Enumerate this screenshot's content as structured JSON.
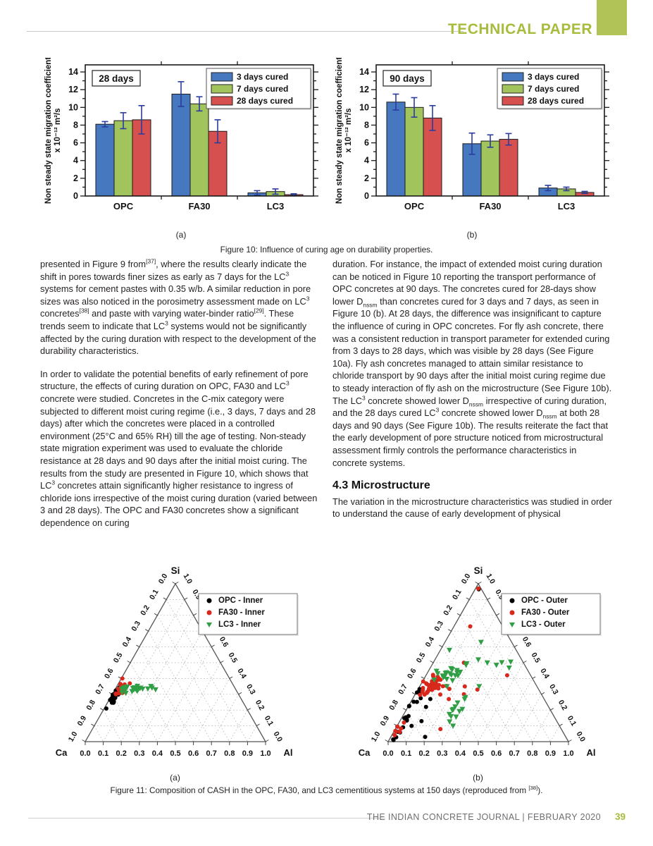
{
  "page": {
    "header": {
      "title": "TECHNICAL PAPER",
      "accent_color": "#b1c256"
    },
    "footer": {
      "journal": "THE INDIAN CONCRETE JOURNAL | FEBRUARY 2020",
      "page_number": "39"
    }
  },
  "figure10": {
    "caption": "Figure 10: Influence of curing age on durability properties.",
    "sub_labels": [
      "(a)",
      "(b)"
    ]
  },
  "figure11": {
    "caption_segments": [
      "Figure 11: Composition of CASH in the OPC, FA30, and LC3 cementitious systems at 150 days (reproduced from ",
      {
        "sup": "[38]"
      },
      ")."
    ],
    "sub_labels": [
      "(a)",
      "(b)"
    ]
  },
  "body": {
    "left": {
      "blocks": [
        {
          "type": "p",
          "segments": [
            "presented in Figure 9 from",
            {
              "sup": "[37]"
            },
            ", where the results clearly indicate the shift in pores towards finer sizes as early as 7 days for the LC",
            {
              "sup": "3"
            },
            " systems for cement pastes with 0.35 w/b. A similar reduction in pore sizes was also noticed in the porosimetry assessment made on LC",
            {
              "sup": "3"
            },
            " concretes",
            {
              "sup": "[38]"
            },
            " and paste with varying water-binder ratio",
            {
              "sup": "[29]"
            },
            ". These trends seem to indicate that LC",
            {
              "sup": "3"
            },
            " systems would not be significantly affected by the curing duration with respect to the development of the durability characteristics."
          ]
        },
        {
          "type": "p",
          "segments": [
            "In order to validate the potential benefits of early refinement of pore structure, the effects of curing duration on OPC, FA30 and LC",
            {
              "sup": "3"
            },
            " concrete were studied. Concretes in the C-mix category were subjected to different moist curing regime (i.e., 3 days, 7 days and 28 days) after which the concretes were placed in a controlled environment (25°C and 65% RH) till the age of testing. Non-steady state migration experiment was used to evaluate the chloride resistance at 28 days and 90 days after the initial moist curing. The results from the study are presented in Figure 10, which shows that LC",
            {
              "sup": "3"
            },
            " concretes attain significantly higher resistance to ingress of chloride ions irrespective of the moist curing duration (varied between 3 and 28 days). The OPC and FA30 concretes show a significant dependence on curing"
          ]
        }
      ]
    },
    "right": {
      "blocks": [
        {
          "type": "p",
          "segments": [
            "duration. For instance, the impact of extended moist curing duration can be noticed in Figure 10 reporting the transport performance of OPC concretes at 90 days. The concretes cured for 28-days show lower D",
            {
              "sub": "nssm"
            },
            " than concretes cured for 3 days and 7 days, as seen in Figure 10 (b). At 28 days, the difference was insignificant to capture the influence of curing in OPC concretes. For fly ash concrete, there was a consistent reduction in transport parameter for extended curing from 3 days to 28 days, which was visible by 28 days (See Figure 10a). Fly ash concretes managed to attain similar resistance to chloride transport by 90 days after the initial moist curing regime due to steady interaction of fly ash on the microstructure (See Figure 10b). The LC",
            {
              "sup": "3"
            },
            " concrete showed lower D",
            {
              "sub": "nssm"
            },
            " irrespective of curing duration, and the 28 days cured LC",
            {
              "sup": "3"
            },
            " concrete showed lower D",
            {
              "sub": "nssm"
            },
            " at both 28 days and 90 days (See Figure 10b). The results reiterate the fact that the early development of pore structure noticed from microstructural assessment firmly controls the performance characteristics in concrete systems."
          ]
        },
        {
          "type": "h2",
          "text": "4.3 Microstructure"
        },
        {
          "type": "p",
          "segments": [
            "The variation in the microstructure characteristics was studied in order to understand the cause of early development of physical"
          ]
        }
      ]
    }
  },
  "chart_data": [
    {
      "type": "bar",
      "panel_label": "28 days",
      "categories": [
        "OPC",
        "FA30",
        "LC3"
      ],
      "series": [
        {
          "name": "3 days cured",
          "color": "#4678c0",
          "values": [
            8.1,
            11.5,
            0.35
          ],
          "errors": [
            0.3,
            1.4,
            0.25
          ]
        },
        {
          "name": "7 days cured",
          "color": "#a2c45c",
          "values": [
            8.5,
            10.4,
            0.5
          ],
          "errors": [
            0.9,
            0.8,
            0.3
          ]
        },
        {
          "name": "28 days cured",
          "color": "#d65050",
          "values": [
            8.6,
            7.3,
            0.15
          ],
          "errors": [
            1.6,
            1.3,
            0.1
          ]
        }
      ],
      "ylabel_line1": "Non steady state migration coefficient",
      "ylabel_line2": "x 10⁻¹² m²/s",
      "ylim": [
        0,
        14.8
      ],
      "ytick_major": 2,
      "ytick_minor": 1,
      "error_color": "#2b3c9e",
      "frame_color": "#1a1a1a",
      "legend_position": "top-right",
      "grid": false
    },
    {
      "type": "bar",
      "panel_label": "90 days",
      "categories": [
        "OPC",
        "FA30",
        "LC3"
      ],
      "series": [
        {
          "name": "3 days cured",
          "color": "#4678c0",
          "values": [
            10.6,
            5.9,
            0.9
          ],
          "errors": [
            0.9,
            1.2,
            0.3
          ]
        },
        {
          "name": "7 days cured",
          "color": "#a2c45c",
          "values": [
            10.0,
            6.2,
            0.8
          ],
          "errors": [
            1.1,
            0.7,
            0.2
          ]
        },
        {
          "name": "28 days cured",
          "color": "#d65050",
          "values": [
            8.8,
            6.4,
            0.4
          ],
          "errors": [
            1.4,
            0.65,
            0.12
          ]
        }
      ],
      "ylabel_line1": "Non steady state migration coefficient",
      "ylabel_line2": "x 10⁻¹² m²/s",
      "ylim": [
        0,
        14.8
      ],
      "ytick_major": 2,
      "ytick_minor": 1,
      "error_color": "#2b3c9e",
      "frame_color": "#1a1a1a",
      "legend_position": "top-right",
      "grid": false
    },
    {
      "type": "ternary-scatter",
      "corners": {
        "top": "Si",
        "bottom_left": "Ca",
        "bottom_right": "Al"
      },
      "tick_step": 0.1,
      "axis_range": [
        0.0,
        1.0
      ],
      "seed": 7,
      "series": [
        {
          "name": "OPC - Inner",
          "marker": "circle",
          "color": "#000000",
          "clusters": [
            {
              "si": 0.28,
              "al": 0.018,
              "n": 30,
              "sd_si": 0.022,
              "sd_al": 0.01
            }
          ],
          "points": [
            [
              0.21,
              0.012
            ],
            [
              0.25,
              0.028
            ]
          ]
        },
        {
          "name": "FA30 - Inner",
          "marker": "circle",
          "color": "#d8281c",
          "clusters": [
            {
              "si": 0.335,
              "al": 0.035,
              "n": 28,
              "sd_si": 0.018,
              "sd_al": 0.015
            }
          ],
          "points": [
            [
              0.4,
              0.006
            ],
            [
              0.3,
              0.02
            ]
          ]
        },
        {
          "name": "LC3 - Inner",
          "marker": "triangle",
          "color": "#2f9e44",
          "clusters": [
            {
              "si": 0.335,
              "al": 0.115,
              "n": 26,
              "sd_si": 0.013,
              "sd_al": 0.035
            }
          ],
          "points": [
            [
              0.33,
              0.225
            ],
            [
              0.345,
              0.05
            ]
          ]
        }
      ]
    },
    {
      "type": "ternary-scatter",
      "corners": {
        "top": "Si",
        "bottom_left": "Ca",
        "bottom_right": "Al"
      },
      "tick_step": 0.1,
      "axis_range": [
        0.0,
        1.0
      ],
      "seed": 19,
      "series": [
        {
          "name": "OPC - Outer",
          "marker": "circle",
          "color": "#000000",
          "clusters": [
            {
              "si": 0.07,
              "al": 0.02,
              "n": 9,
              "sd_si": 0.05,
              "sd_al": 0.012
            },
            {
              "si": 0.2,
              "al": 0.03,
              "n": 8,
              "sd_si": 0.05,
              "sd_al": 0.02
            },
            {
              "si": 0.3,
              "al": 0.045,
              "n": 6,
              "sd_si": 0.03,
              "sd_al": 0.025
            }
          ],
          "points": [
            [
              0.965,
              0.02
            ],
            [
              0.03,
              0.19
            ],
            [
              0.13,
              0.12
            ],
            [
              0.22,
              0.1
            ],
            [
              0.1,
              0.08
            ]
          ]
        },
        {
          "name": "FA30 - Outer",
          "marker": "circle",
          "color": "#d8281c",
          "clusters": [
            {
              "si": 0.35,
              "al": 0.06,
              "n": 42,
              "sd_si": 0.035,
              "sd_al": 0.028
            },
            {
              "si": 0.05,
              "al": 0.012,
              "n": 7,
              "sd_si": 0.03,
              "sd_al": 0.008
            },
            {
              "si": 0.3,
              "al": 0.16,
              "n": 5,
              "sd_si": 0.04,
              "sd_al": 0.05
            }
          ],
          "points": [
            [
              0.97,
              0.015
            ],
            [
              0.73,
              0.09
            ],
            [
              0.5,
              0.17
            ],
            [
              0.42,
              0.45
            ],
            [
              0.33,
              0.33
            ],
            [
              0.35,
              0.25
            ],
            [
              0.08,
              0.25
            ],
            [
              0.3,
              0.27
            ]
          ]
        },
        {
          "name": "LC3 - Outer",
          "marker": "triangle",
          "color": "#2f9e44",
          "clusters": [
            {
              "si": 0.42,
              "al": 0.13,
              "n": 22,
              "sd_si": 0.03,
              "sd_al": 0.04
            },
            {
              "si": 0.2,
              "al": 0.28,
              "n": 13,
              "sd_si": 0.07,
              "sd_al": 0.02
            },
            {
              "si": 0.5,
              "al": 0.42,
              "n": 4,
              "sd_si": 0.015,
              "sd_al": 0.025
            }
          ],
          "points": [
            [
              0.63,
              0.2
            ],
            [
              0.52,
              0.24
            ],
            [
              0.5,
              0.3
            ],
            [
              0.1,
              0.31
            ],
            [
              0.35,
              0.33
            ],
            [
              0.58,
              0.05
            ]
          ]
        }
      ]
    }
  ]
}
